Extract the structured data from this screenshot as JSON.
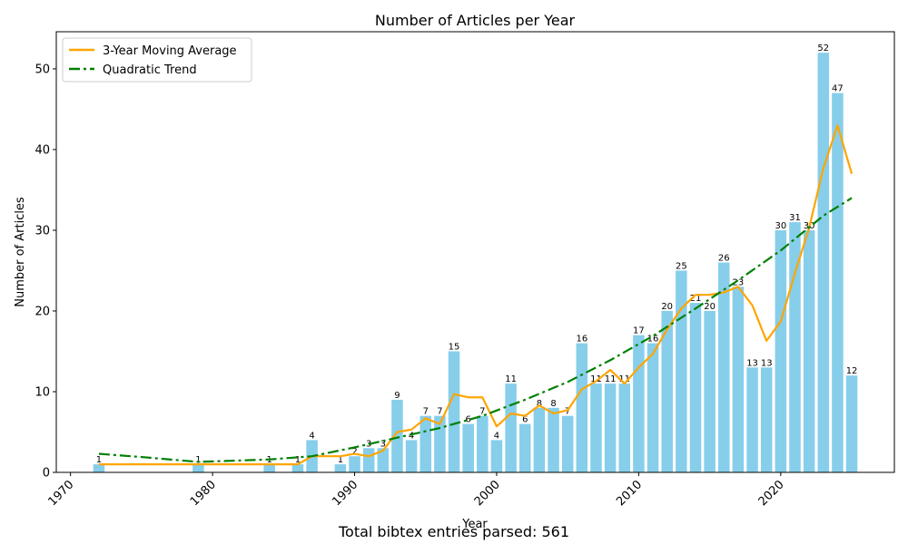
{
  "chart_data": {
    "type": "bar",
    "title": "Number of Articles per Year",
    "xlabel": "Year",
    "ylabel": "Number of Articles",
    "xlim": [
      1969,
      2028
    ],
    "ylim": [
      0,
      54.6
    ],
    "xticks": [
      1970,
      1980,
      1990,
      2000,
      2010,
      2020
    ],
    "yticks": [
      0,
      10,
      20,
      30,
      40,
      50
    ],
    "grid": false,
    "legend_position": "top-left",
    "bars": {
      "color": "#87ceeb",
      "x": [
        1972,
        1979,
        1984,
        1986,
        1987,
        1989,
        1990,
        1991,
        1992,
        1993,
        1994,
        1995,
        1996,
        1997,
        1998,
        1999,
        2000,
        2001,
        2002,
        2003,
        2004,
        2005,
        2006,
        2007,
        2008,
        2009,
        2010,
        2011,
        2012,
        2013,
        2014,
        2015,
        2016,
        2017,
        2018,
        2019,
        2020,
        2021,
        2022,
        2023,
        2024,
        2025
      ],
      "values": [
        1,
        1,
        1,
        1,
        4,
        1,
        2,
        3,
        3,
        9,
        4,
        7,
        7,
        15,
        6,
        7,
        4,
        11,
        6,
        8,
        8,
        7,
        16,
        11,
        11,
        11,
        17,
        16,
        20,
        25,
        21,
        20,
        26,
        23,
        13,
        13,
        30,
        31,
        30,
        52,
        47,
        12
      ]
    },
    "series": [
      {
        "name": "3-Year Moving Average",
        "color": "#ffa500",
        "style": "solid",
        "x": [
          1972,
          1979,
          1984,
          1986,
          1987,
          1989,
          1990,
          1991,
          1992,
          1993,
          1994,
          1995,
          1996,
          1997,
          1998,
          1999,
          2000,
          2001,
          2002,
          2003,
          2004,
          2005,
          2006,
          2007,
          2008,
          2009,
          2010,
          2011,
          2012,
          2013,
          2014,
          2015,
          2016,
          2017,
          2018,
          2019,
          2020,
          2021,
          2022,
          2023,
          2024,
          2025
        ],
        "values": [
          1,
          1,
          1,
          1,
          2,
          2,
          2.3,
          2,
          2.7,
          5,
          5.3,
          6.7,
          6,
          9.7,
          9.3,
          9.3,
          5.7,
          7.3,
          7,
          8.3,
          7.3,
          7.7,
          10.3,
          11.3,
          12.7,
          11,
          13,
          14.7,
          17.7,
          20.3,
          22,
          22,
          22.3,
          23,
          20.7,
          16.3,
          18.7,
          24.7,
          30.3,
          37.7,
          43,
          37
        ]
      },
      {
        "name": "Quadratic Trend",
        "color": "#008000",
        "style": "dashdot",
        "x": [
          1972,
          1975,
          1979,
          1984,
          1987,
          1990,
          1993,
          1996,
          1999,
          2002,
          2005,
          2008,
          2011,
          2014,
          2017,
          2020,
          2023,
          2025
        ],
        "values": [
          2.3,
          1.9,
          1.3,
          1.6,
          2.0,
          3.1,
          4.3,
          5.5,
          7.0,
          9.0,
          11.2,
          13.9,
          16.9,
          20.3,
          23.8,
          27.5,
          31.8,
          34.0
        ]
      }
    ]
  },
  "footer": {
    "note": "Total bibtex entries parsed: 561"
  }
}
